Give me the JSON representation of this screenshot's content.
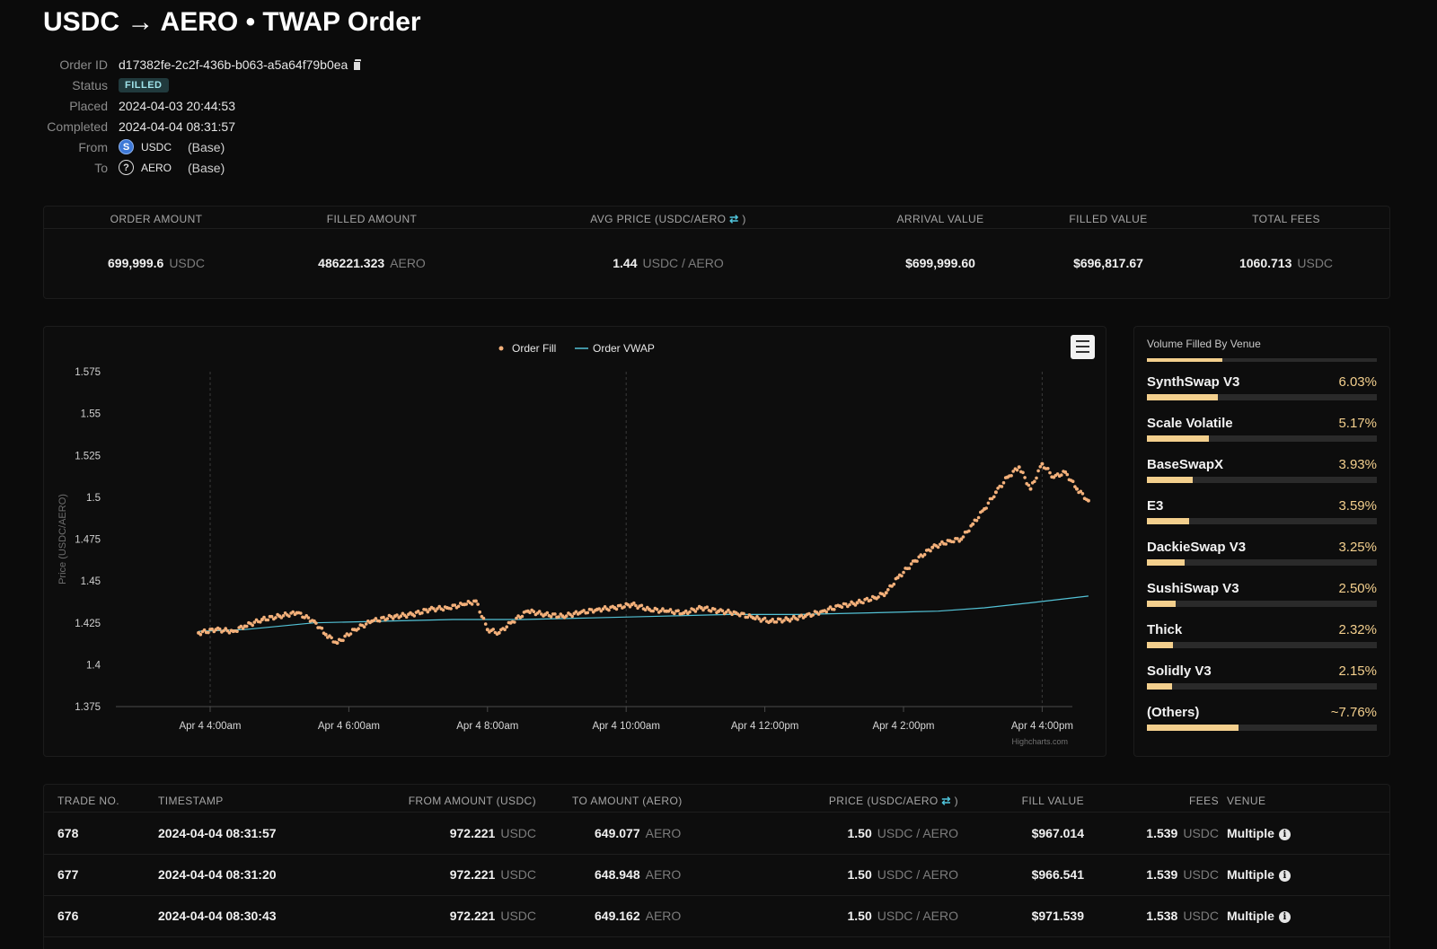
{
  "header": {
    "title": "USDC → AERO • TWAP Order"
  },
  "order": {
    "id_label": "Order ID",
    "id": "d17382fe-2c2f-436b-b063-a5a64f79b0ea",
    "status_label": "Status",
    "status": "FILLED",
    "placed_label": "Placed",
    "placed": "2024-04-03 20:44:53",
    "completed_label": "Completed",
    "completed": "2024-04-04 08:31:57",
    "from_label": "From",
    "from_token": "USDC",
    "from_chain": "(Base)",
    "from_icon": "S",
    "to_label": "To",
    "to_token": "AERO",
    "to_chain": "(Base)",
    "to_icon": "?"
  },
  "summary": {
    "headers": {
      "order_amount": "ORDER AMOUNT",
      "filled_amount": "FILLED AMOUNT",
      "avg_price": "AVG PRICE (USDC/AERO",
      "avg_price_end": ")",
      "arrival_value": "ARRIVAL VALUE",
      "filled_value": "FILLED VALUE",
      "total_fees": "TOTAL FEES"
    },
    "swap_icon": "⇄",
    "order_amount": "699,999.6",
    "order_amount_unit": "USDC",
    "filled_amount": "486221.323",
    "filled_amount_unit": "AERO",
    "avg_price": "1.44",
    "avg_price_unit": "USDC / AERO",
    "arrival_value": "$699,999.60",
    "filled_value": "$696,817.67",
    "total_fees": "1060.713",
    "total_fees_unit": "USDC"
  },
  "chart_data": {
    "type": "scatter",
    "legend": [
      "Order Fill",
      "Order VWAP"
    ],
    "ylabel": "Price (USDC/AERO)",
    "ylim": [
      1.375,
      1.575
    ],
    "yticks": [
      "1.575",
      "1.55",
      "1.525",
      "1.5",
      "1.475",
      "1.45",
      "1.425",
      "1.4",
      "1.375"
    ],
    "xticks": [
      "Apr 4 4:00am",
      "Apr 4 6:00am",
      "Apr 4 8:00am",
      "Apr 4 10:00am",
      "Apr 4 12:00pm",
      "Apr 4 2:00pm",
      "Apr 4 4:00pm"
    ],
    "credit": "Highcharts.com",
    "series": [
      {
        "name": "Order Fill",
        "color": "#f3b07a",
        "x": [
          "03:50",
          "04:05",
          "04:20",
          "04:30",
          "04:45",
          "05:00",
          "05:15",
          "05:30",
          "05:40",
          "05:50",
          "06:05",
          "06:20",
          "06:40",
          "06:55",
          "07:10",
          "07:25",
          "07:40",
          "07:50",
          "08:00",
          "08:10",
          "08:20",
          "08:35",
          "08:50",
          "09:05",
          "09:20",
          "09:35",
          "09:50",
          "10:05",
          "10:20",
          "10:35",
          "10:50",
          "11:05",
          "11:20",
          "11:35",
          "11:50",
          "12:05",
          "12:20",
          "12:35",
          "12:50",
          "13:05",
          "13:20",
          "13:35",
          "13:45",
          "13:55",
          "14:10",
          "14:25",
          "14:40",
          "14:50",
          "15:00",
          "15:10",
          "15:20",
          "15:30",
          "15:40",
          "15:50",
          "16:00",
          "16:10",
          "16:20",
          "16:30",
          "16:40"
        ],
        "y": [
          1.419,
          1.421,
          1.42,
          1.423,
          1.427,
          1.429,
          1.431,
          1.426,
          1.418,
          1.413,
          1.421,
          1.426,
          1.429,
          1.43,
          1.433,
          1.434,
          1.436,
          1.438,
          1.421,
          1.419,
          1.425,
          1.432,
          1.43,
          1.429,
          1.431,
          1.433,
          1.434,
          1.436,
          1.433,
          1.432,
          1.431,
          1.434,
          1.432,
          1.431,
          1.428,
          1.426,
          1.427,
          1.429,
          1.432,
          1.435,
          1.437,
          1.44,
          1.443,
          1.452,
          1.462,
          1.47,
          1.474,
          1.475,
          1.484,
          1.493,
          1.503,
          1.512,
          1.518,
          1.505,
          1.52,
          1.512,
          1.515,
          1.505,
          1.498
        ]
      },
      {
        "name": "Order VWAP",
        "color": "#53c2d6",
        "x": [
          "03:50",
          "04:30",
          "05:30",
          "06:30",
          "07:30",
          "08:30",
          "09:30",
          "10:30",
          "11:30",
          "12:30",
          "13:30",
          "14:30",
          "15:10",
          "15:50",
          "16:40"
        ],
        "y": [
          1.42,
          1.421,
          1.425,
          1.426,
          1.427,
          1.427,
          1.428,
          1.429,
          1.43,
          1.43,
          1.431,
          1.432,
          1.434,
          1.437,
          1.441
        ]
      }
    ]
  },
  "venues": {
    "title": "Volume Filled By Venue",
    "top_bar_fraction": 0.33,
    "items": [
      {
        "name": "SynthSwap V3",
        "pct": "6.03%",
        "fraction": 0.31
      },
      {
        "name": "Scale Volatile",
        "pct": "5.17%",
        "fraction": 0.27
      },
      {
        "name": "BaseSwapX",
        "pct": "3.93%",
        "fraction": 0.2
      },
      {
        "name": "E3",
        "pct": "3.59%",
        "fraction": 0.185
      },
      {
        "name": "DackieSwap V3",
        "pct": "3.25%",
        "fraction": 0.165
      },
      {
        "name": "SushiSwap V3",
        "pct": "2.50%",
        "fraction": 0.125
      },
      {
        "name": "Thick",
        "pct": "2.32%",
        "fraction": 0.115
      },
      {
        "name": "Solidly V3",
        "pct": "2.15%",
        "fraction": 0.11
      },
      {
        "name": "(Others)",
        "pct": "~7.76%",
        "fraction": 0.4
      }
    ]
  },
  "trades": {
    "headers": {
      "trade_no": "TRADE NO.",
      "timestamp": "TIMESTAMP",
      "from_amount": "FROM AMOUNT (USDC)",
      "to_amount": "TO AMOUNT (AERO)",
      "price": "PRICE (USDC/AERO",
      "price_end": ")",
      "fill_value": "FILL VALUE",
      "fees": "FEES",
      "venue": "VENUE"
    },
    "rows": [
      {
        "no": "678",
        "ts": "2024-04-04 08:31:57",
        "from": "972.221",
        "from_unit": "USDC",
        "to": "649.077",
        "to_unit": "AERO",
        "price": "1.50",
        "price_unit": "USDC / AERO",
        "fill_value": "$967.014",
        "fees": "1.539",
        "fees_unit": "USDC",
        "venue": "Multiple"
      },
      {
        "no": "677",
        "ts": "2024-04-04 08:31:20",
        "from": "972.221",
        "from_unit": "USDC",
        "to": "648.948",
        "to_unit": "AERO",
        "price": "1.50",
        "price_unit": "USDC / AERO",
        "fill_value": "$966.541",
        "fees": "1.539",
        "fees_unit": "USDC",
        "venue": "Multiple"
      },
      {
        "no": "676",
        "ts": "2024-04-04 08:30:43",
        "from": "972.221",
        "from_unit": "USDC",
        "to": "649.162",
        "to_unit": "AERO",
        "price": "1.50",
        "price_unit": "USDC / AERO",
        "fill_value": "$971.539",
        "fees": "1.538",
        "fees_unit": "USDC",
        "venue": "Multiple"
      }
    ]
  }
}
